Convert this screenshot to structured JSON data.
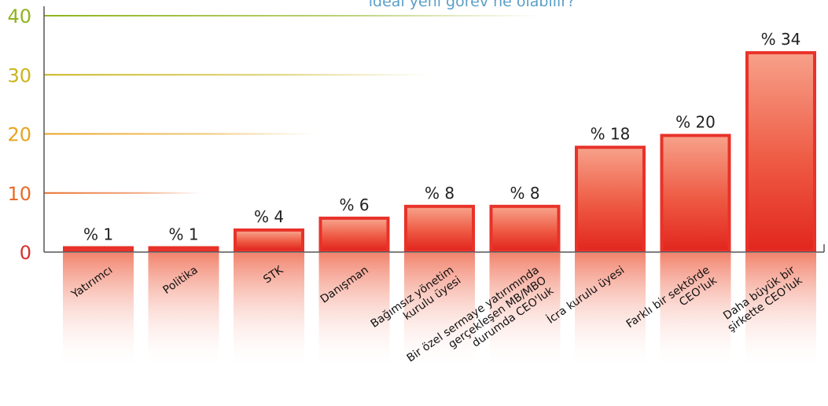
{
  "chart_data": {
    "type": "bar",
    "title": "ideal yeni görev ne olabilir?",
    "categories": [
      [
        "Yatırımcı"
      ],
      [
        "Politika"
      ],
      [
        "STK"
      ],
      [
        "Danışman"
      ],
      [
        "Bağımsız yönetim",
        "kurulu üyesi"
      ],
      [
        "Bir özel sermaye yatırımında",
        "gerçekleşen MB/MBO",
        "durumda CEO'luk"
      ],
      [
        "İcra kurulu üyesi"
      ],
      [
        "Farklı bir sektörde",
        "CEO'luk"
      ],
      [
        "Daha büyük bir",
        "şirkette CEO'luk"
      ]
    ],
    "values": [
      1,
      1,
      4,
      6,
      8,
      8,
      18,
      20,
      34
    ],
    "value_labels": [
      "% 1",
      "% 1",
      "% 4",
      "% 6",
      "% 8",
      "% 8",
      "% 18",
      "% 20",
      "% 34"
    ],
    "yticks": [
      "0",
      "10",
      "20",
      "30",
      "40"
    ],
    "ylim": [
      0,
      40
    ],
    "grid_colors": [
      "#d9322b",
      "#e96b2a",
      "#e8a420",
      "#c9b51e",
      "#8fb41e"
    ],
    "bar_color": "#e8322a",
    "grid": true
  }
}
